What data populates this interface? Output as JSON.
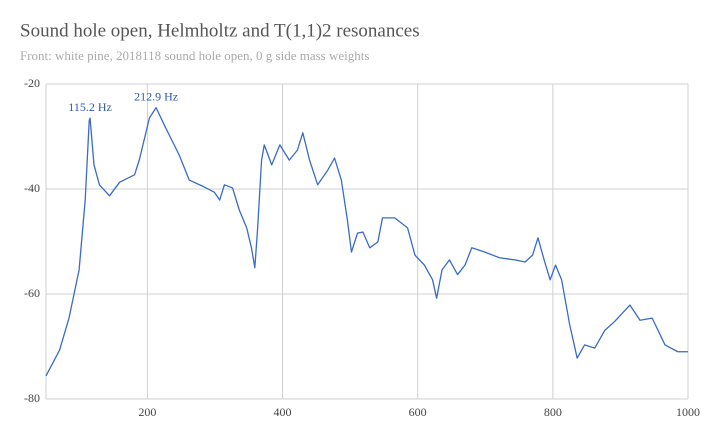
{
  "chart_data": {
    "type": "line",
    "title": "Sound hole open, Helmholtz and T(1,1)2 resonances",
    "subtitle": "Front: white pine, 2018118 sound hole open, 0 g side mass weights",
    "x": [
      50,
      70,
      84,
      99,
      108,
      114,
      115.2,
      121,
      129,
      144,
      159,
      181,
      188,
      203,
      212.9,
      225,
      247,
      262,
      284,
      299,
      307,
      314,
      326,
      336,
      347,
      354,
      359,
      363,
      369,
      373,
      384,
      396,
      410,
      422,
      430,
      440,
      452,
      467,
      477,
      487,
      496,
      502,
      511,
      519,
      529,
      541,
      548,
      566,
      585,
      596,
      610,
      622,
      628,
      636,
      647,
      659,
      670,
      680,
      699,
      721,
      744,
      759,
      770,
      778,
      788,
      796,
      804,
      813,
      825,
      836,
      847,
      862,
      877,
      891,
      914,
      929,
      947,
      966,
      985,
      1000
    ],
    "series": [
      {
        "name": "Front",
        "color": "#3a6bc6",
        "values": [
          -75.6,
          -70.7,
          -64.6,
          -55.4,
          -42.1,
          -26.9,
          -26.5,
          -35.4,
          -39.2,
          -41.3,
          -38.7,
          -37.3,
          -34.5,
          -26.5,
          -24.5,
          -27.8,
          -33.5,
          -38.3,
          -39.6,
          -40.6,
          -42.1,
          -39.2,
          -39.8,
          -44.0,
          -47.4,
          -51.2,
          -55.0,
          -47.8,
          -34.5,
          -31.6,
          -35.4,
          -31.6,
          -34.5,
          -32.6,
          -29.3,
          -34.5,
          -39.2,
          -36.4,
          -34.1,
          -38.3,
          -45.9,
          -52.0,
          -48.4,
          -48.2,
          -51.2,
          -50.1,
          -45.5,
          -45.5,
          -47.4,
          -52.6,
          -54.5,
          -57.3,
          -60.8,
          -55.4,
          -53.5,
          -56.3,
          -54.5,
          -51.2,
          -52.0,
          -53.1,
          -53.5,
          -53.9,
          -52.6,
          -49.3,
          -53.9,
          -57.3,
          -54.5,
          -57.3,
          -65.9,
          -72.2,
          -69.7,
          -70.3,
          -66.9,
          -65.3,
          -62.1,
          -65.0,
          -64.6,
          -69.7,
          -71.0,
          -71.0
        ]
      }
    ],
    "annotations": [
      {
        "label": "115.2 Hz",
        "x": 115.2,
        "y": -26.5
      },
      {
        "label": "212.9 Hz",
        "x": 212.9,
        "y": -24.5
      }
    ],
    "xlim": [
      50,
      1000
    ],
    "ylim": [
      -80,
      -20
    ],
    "xticks": [
      200,
      400,
      600,
      800,
      1000
    ],
    "yticks": [
      -80,
      -60,
      -40,
      -20
    ],
    "grid": true
  }
}
